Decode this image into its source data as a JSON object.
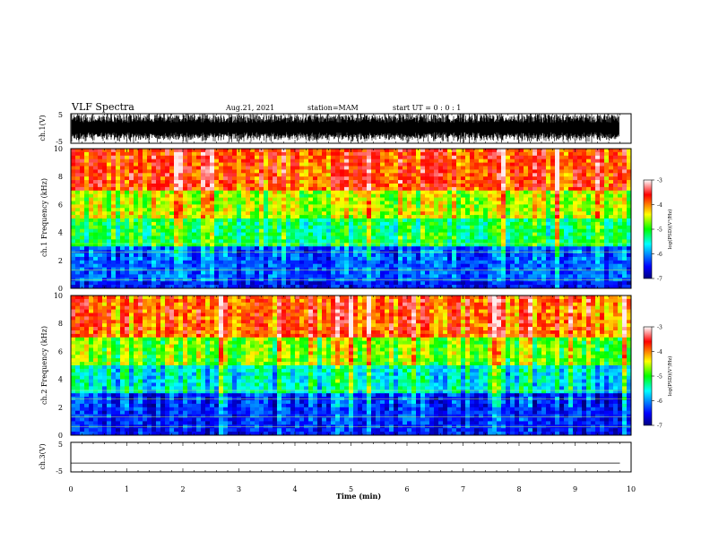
{
  "header": {
    "title": "VLF Spectra",
    "date": "Aug.21, 2021",
    "station": "station=MAM",
    "start": "start  UT =  0 : 0 : 1"
  },
  "colorbars": [
    {
      "label": "log(PSD)(V²/Hz)",
      "ticks": [
        "-3",
        "-4",
        "-5",
        "-6",
        "-7"
      ]
    },
    {
      "label": "log(PSD)(V²/Hz)",
      "ticks": [
        "-3",
        "-4",
        "-5",
        "-6",
        "-7"
      ]
    }
  ],
  "chart_data": [
    {
      "type": "line",
      "title": "VLF Spectra",
      "ylabel": "ch.1(V)",
      "ylim": [
        -5,
        5
      ],
      "ytick_labels": [
        "5",
        "-5"
      ],
      "description_series": [
        {
          "values_note": "dense noise-like waveform within roughly ±5 V"
        }
      ]
    },
    {
      "type": "heatmap",
      "ylabel": "ch.1 Frequency (kHz)",
      "ylim": [
        0,
        10
      ],
      "ytick_labels": [
        "0",
        "2",
        "4",
        "6",
        "8",
        "10"
      ],
      "color_range": [
        -7,
        -3
      ],
      "colorbar_label": "log(PSD)(V²/Hz)",
      "bands": [
        {
          "freq": [
            0,
            0.5
          ],
          "value": -6.5
        },
        {
          "freq": [
            0.5,
            3
          ],
          "value": -6.2
        },
        {
          "freq": [
            3,
            5
          ],
          "value": -5.2
        },
        {
          "freq": [
            5,
            7
          ],
          "value": -4.6
        },
        {
          "freq": [
            7,
            10
          ],
          "value": -3.8
        }
      ]
    },
    {
      "type": "heatmap",
      "ylabel": "ch.2 Frequency (kHz)",
      "ylim": [
        0,
        10
      ],
      "ytick_labels": [
        "0",
        "2",
        "4",
        "6",
        "8",
        "10"
      ],
      "color_range": [
        -7,
        -3
      ],
      "colorbar_label": "log(PSD)(V²/Hz)",
      "bands": [
        {
          "freq": [
            0,
            0.5
          ],
          "value": -6.5
        },
        {
          "freq": [
            0.5,
            3
          ],
          "value": -6.4
        },
        {
          "freq": [
            3,
            5
          ],
          "value": -5.6
        },
        {
          "freq": [
            5,
            7
          ],
          "value": -4.8
        },
        {
          "freq": [
            7,
            10
          ],
          "value": -3.9
        }
      ]
    },
    {
      "type": "line",
      "ylabel": "ch.3(V)",
      "ylim": [
        -5,
        5
      ],
      "ytick_labels": [
        "5",
        "-5"
      ],
      "series": [
        {
          "x": [
            0,
            9.8
          ],
          "values": [
            -2,
            -2
          ]
        }
      ],
      "xlabel": "Time  (min)",
      "xlim": [
        0,
        10
      ],
      "xtick_labels": [
        "0",
        "1",
        "2",
        "3",
        "4",
        "5",
        "6",
        "7",
        "8",
        "9",
        "10"
      ]
    }
  ]
}
